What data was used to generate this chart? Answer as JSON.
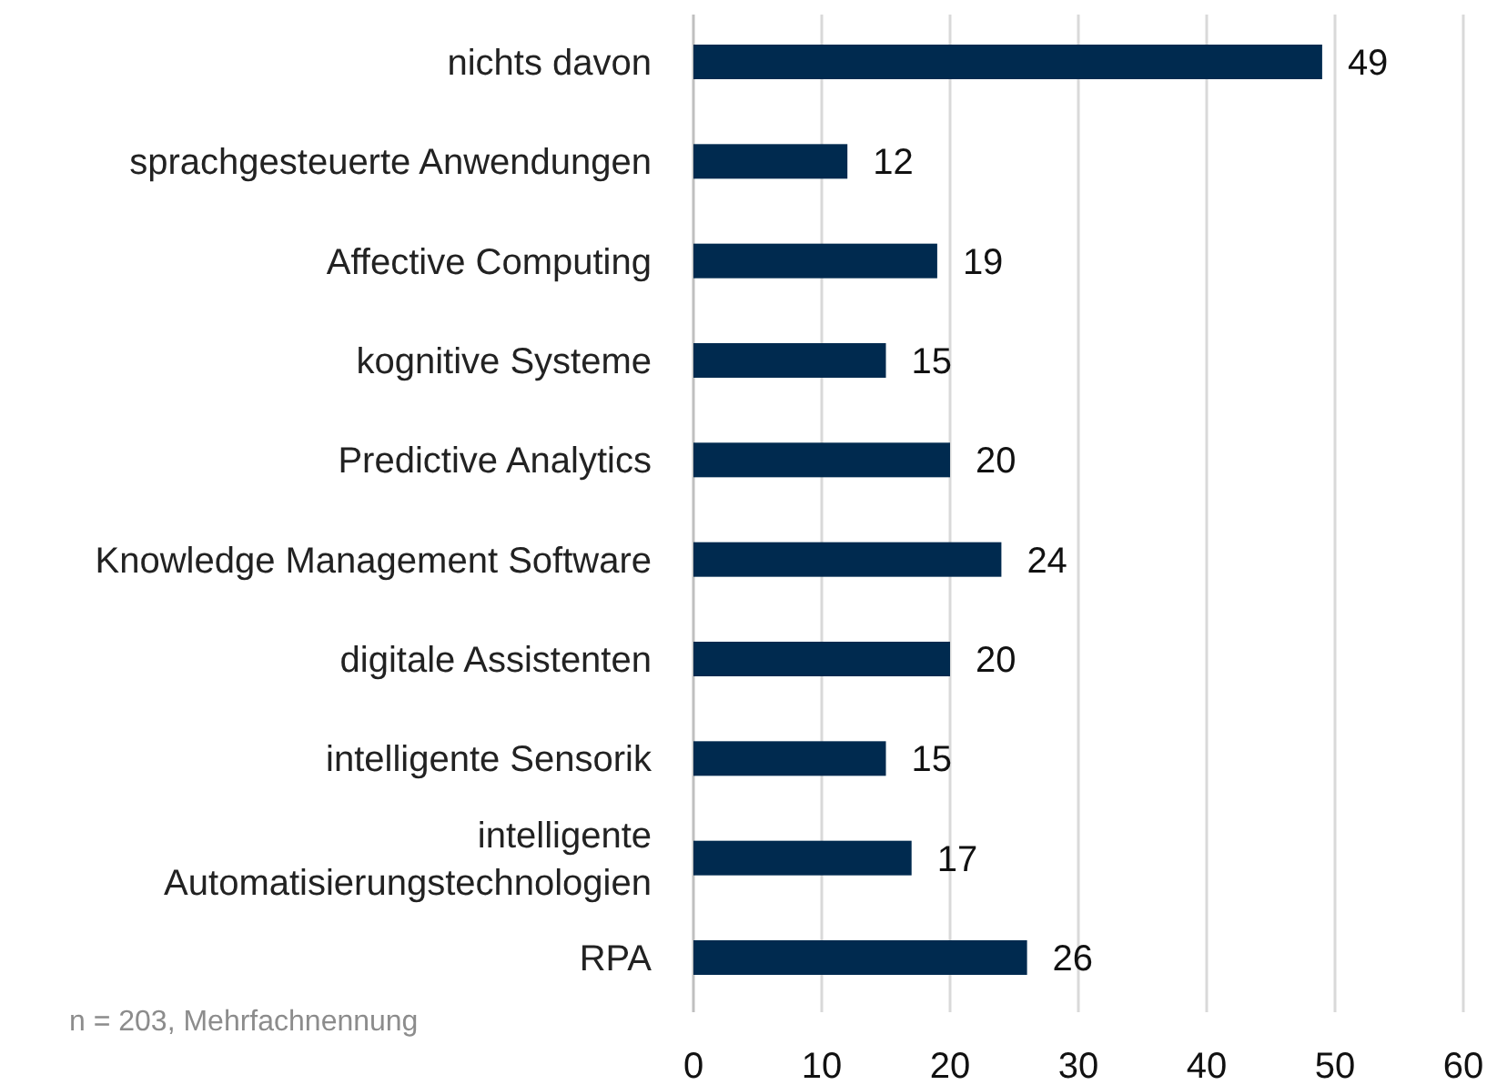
{
  "chart_data": {
    "type": "bar",
    "orientation": "horizontal",
    "categories": [
      "nichts davon",
      "sprachgesteuerte Anwendungen",
      "Affective Computing",
      "kognitive Systeme",
      "Predictive Analytics",
      "Knowledge Management Software",
      "digitale Assistenten",
      "intelligente Sensorik",
      "intelligente Automatisierungstechnologien",
      "RPA"
    ],
    "values": [
      49,
      12,
      19,
      15,
      20,
      24,
      20,
      15,
      17,
      26
    ],
    "color": "#002a4f",
    "data_labels": true,
    "grid": "x",
    "xlim": [
      0,
      60
    ],
    "xticks": [
      0,
      10,
      20,
      30,
      40,
      50,
      60
    ],
    "annotations": [
      "n = 203, Mehrfachnennung"
    ]
  }
}
